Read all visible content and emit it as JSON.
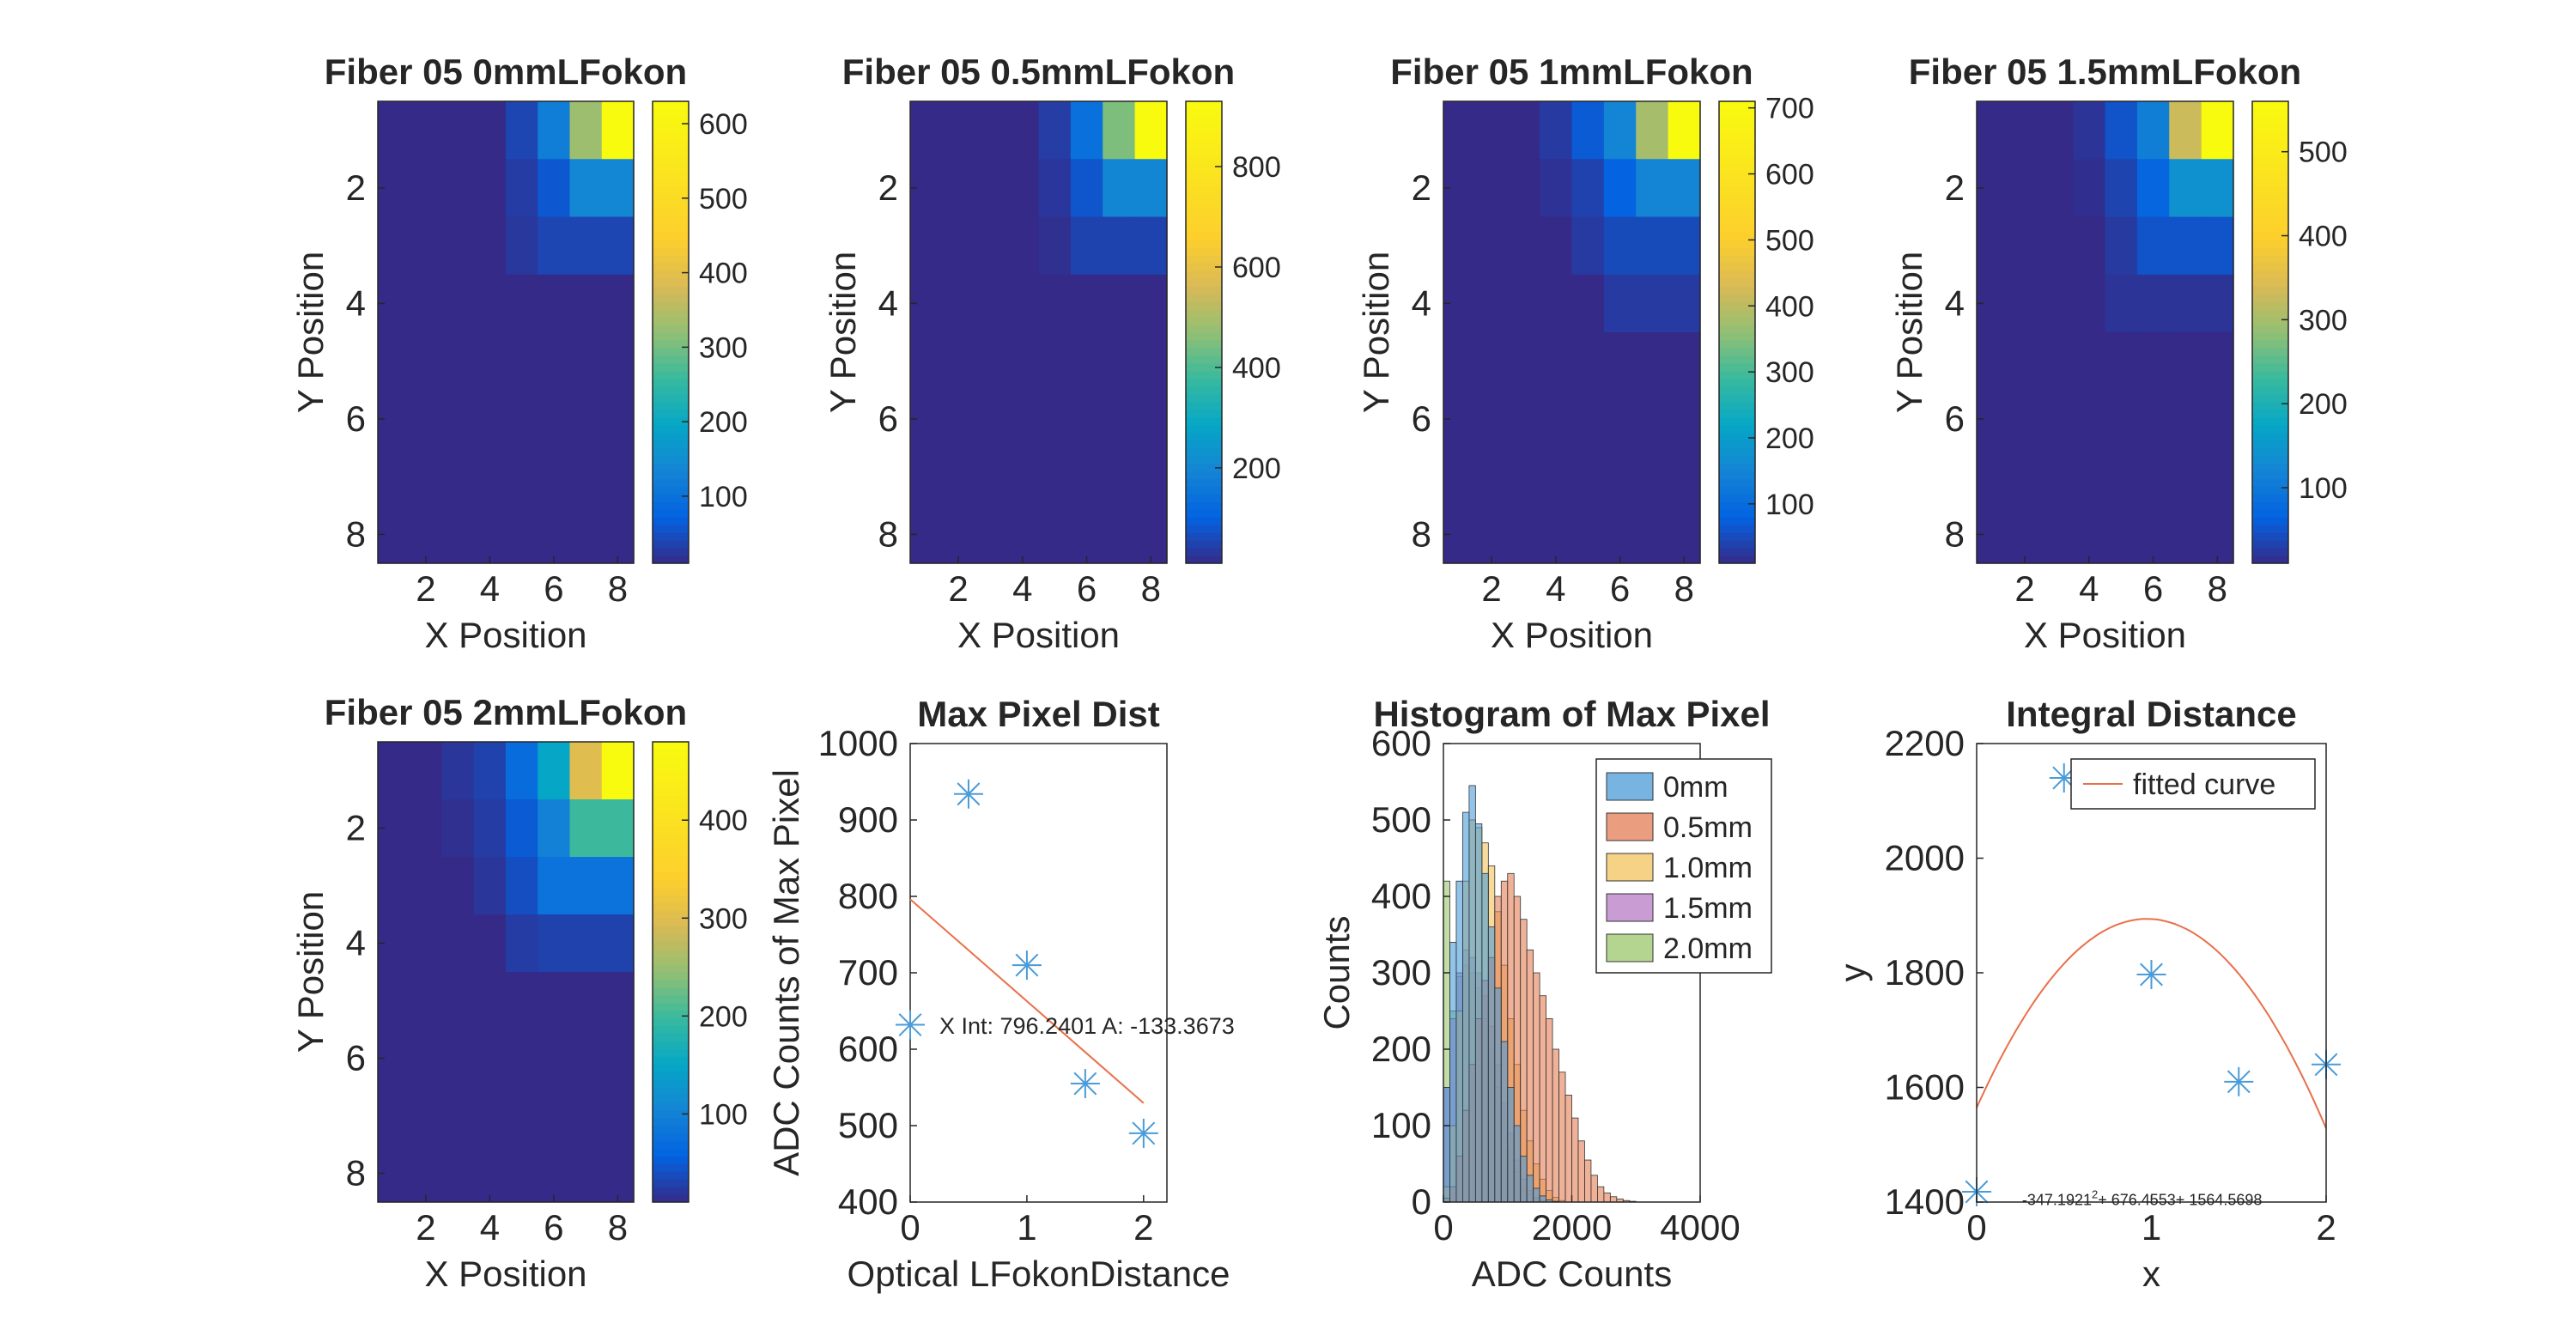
{
  "chart_data": [
    {
      "type": "heatmap",
      "title": "Fiber 05 0mmLFokon",
      "xlabel": "X Position",
      "ylabel": "Y Position",
      "xticks": [
        "2",
        "4",
        "6",
        "8"
      ],
      "yticks": [
        "2",
        "4",
        "6",
        "8"
      ],
      "clim": [
        10,
        630
      ],
      "colorbar_ticks": [
        100,
        200,
        300,
        400,
        500,
        600
      ],
      "z": [
        [
          10,
          10,
          10,
          10,
          40,
          120,
          330,
          630
        ],
        [
          10,
          10,
          10,
          10,
          30,
          60,
          140,
          140
        ],
        [
          10,
          10,
          10,
          10,
          25,
          40,
          40,
          40
        ],
        [
          10,
          10,
          10,
          10,
          10,
          10,
          10,
          10
        ],
        [
          10,
          10,
          10,
          10,
          10,
          10,
          10,
          10
        ],
        [
          10,
          10,
          10,
          10,
          10,
          10,
          10,
          10
        ],
        [
          10,
          10,
          10,
          10,
          10,
          10,
          10,
          10
        ],
        [
          10,
          10,
          10,
          10,
          10,
          10,
          10,
          10
        ]
      ]
    },
    {
      "type": "heatmap",
      "title": "Fiber 05 0.5mmLFokon",
      "xlabel": "X Position",
      "ylabel": "Y Position",
      "xticks": [
        "2",
        "4",
        "6",
        "8"
      ],
      "yticks": [
        "2",
        "4",
        "6",
        "8"
      ],
      "clim": [
        10,
        930
      ],
      "colorbar_ticks": [
        200,
        400,
        600,
        800
      ],
      "z": [
        [
          10,
          10,
          10,
          10,
          40,
          140,
          450,
          930
        ],
        [
          10,
          10,
          10,
          10,
          30,
          80,
          200,
          200
        ],
        [
          10,
          10,
          10,
          10,
          20,
          50,
          50,
          50
        ],
        [
          10,
          10,
          10,
          10,
          10,
          10,
          10,
          10
        ],
        [
          10,
          10,
          10,
          10,
          10,
          10,
          10,
          10
        ],
        [
          10,
          10,
          10,
          10,
          10,
          10,
          10,
          10
        ],
        [
          10,
          10,
          10,
          10,
          10,
          10,
          10,
          10
        ],
        [
          10,
          10,
          10,
          10,
          10,
          10,
          10,
          10
        ]
      ]
    },
    {
      "type": "heatmap",
      "title": "Fiber 05 1mmLFokon",
      "xlabel": "X Position",
      "ylabel": "Y Position",
      "xticks": [
        "2",
        "4",
        "6",
        "8"
      ],
      "yticks": [
        "2",
        "4",
        "6",
        "8"
      ],
      "clim": [
        10,
        710
      ],
      "colorbar_ticks": [
        100,
        200,
        300,
        400,
        500,
        600,
        700
      ],
      "z": [
        [
          10,
          10,
          10,
          30,
          70,
          150,
          380,
          710
        ],
        [
          10,
          10,
          10,
          20,
          40,
          80,
          150,
          150
        ],
        [
          10,
          10,
          10,
          10,
          30,
          50,
          50,
          50
        ],
        [
          10,
          10,
          10,
          10,
          10,
          30,
          30,
          30
        ],
        [
          10,
          10,
          10,
          10,
          10,
          10,
          10,
          10
        ],
        [
          10,
          10,
          10,
          10,
          10,
          10,
          10,
          10
        ],
        [
          10,
          10,
          10,
          10,
          10,
          10,
          10,
          10
        ],
        [
          10,
          10,
          10,
          10,
          10,
          10,
          10,
          10
        ]
      ]
    },
    {
      "type": "heatmap",
      "title": "Fiber 05 1.5mmLFokon",
      "xlabel": "X Position",
      "ylabel": "Y Position",
      "xticks": [
        "2",
        "4",
        "6",
        "8"
      ],
      "yticks": [
        "2",
        "4",
        "6",
        "8"
      ],
      "clim": [
        10,
        560
      ],
      "colorbar_ticks": [
        100,
        200,
        300,
        400,
        500
      ],
      "z": [
        [
          10,
          10,
          10,
          20,
          50,
          110,
          330,
          560
        ],
        [
          10,
          10,
          10,
          15,
          35,
          70,
          140,
          140
        ],
        [
          10,
          10,
          10,
          10,
          25,
          50,
          50,
          50
        ],
        [
          10,
          10,
          10,
          10,
          20,
          20,
          20,
          20
        ],
        [
          10,
          10,
          10,
          10,
          10,
          10,
          10,
          10
        ],
        [
          10,
          10,
          10,
          10,
          10,
          10,
          10,
          10
        ],
        [
          10,
          10,
          10,
          10,
          10,
          10,
          10,
          10
        ],
        [
          10,
          10,
          10,
          10,
          10,
          10,
          10,
          10
        ]
      ]
    },
    {
      "type": "heatmap",
      "title": "Fiber 05 2mmLFokon",
      "xlabel": "X Position",
      "ylabel": "Y Position",
      "xticks": [
        "2",
        "4",
        "6",
        "8"
      ],
      "yticks": [
        "2",
        "4",
        "6",
        "8"
      ],
      "clim": [
        10,
        480
      ],
      "colorbar_ticks": [
        100,
        200,
        300,
        400
      ],
      "z": [
        [
          10,
          10,
          20,
          30,
          70,
          150,
          300,
          480
        ],
        [
          10,
          10,
          15,
          25,
          50,
          100,
          200,
          200
        ],
        [
          10,
          10,
          10,
          20,
          40,
          80,
          80,
          80
        ],
        [
          10,
          10,
          10,
          10,
          25,
          30,
          30,
          30
        ],
        [
          10,
          10,
          10,
          10,
          10,
          10,
          10,
          10
        ],
        [
          10,
          10,
          10,
          10,
          10,
          10,
          10,
          10
        ],
        [
          10,
          10,
          10,
          10,
          10,
          10,
          10,
          10
        ],
        [
          10,
          10,
          10,
          10,
          10,
          10,
          10,
          10
        ]
      ]
    },
    {
      "type": "scatter",
      "title": "Max Pixel Dist",
      "xlabel": "Optical LFokonDistance",
      "ylabel": "ADC Counts of Max Pixel",
      "xlim": [
        0,
        2.2
      ],
      "ylim": [
        400,
        1000
      ],
      "xticks": [
        0,
        1,
        2
      ],
      "yticks": [
        400,
        500,
        600,
        700,
        800,
        900,
        1000
      ],
      "x": [
        0,
        0.5,
        1,
        1.5,
        2
      ],
      "y": [
        632,
        934,
        710,
        555,
        490
      ],
      "fit_line": {
        "x": [
          0,
          2
        ],
        "y": [
          796.2401,
          529.5055
        ]
      },
      "annotation": "X Int: 796.2401 A: -133.3673"
    },
    {
      "type": "bar",
      "title": "Histogram of Max Pixel",
      "xlabel": "ADC Counts",
      "ylabel": "Counts",
      "xlim": [
        0,
        4000
      ],
      "ylim": [
        0,
        600
      ],
      "xticks": [
        0,
        2000,
        4000
      ],
      "yticks": [
        0,
        100,
        200,
        300,
        400,
        500,
        600
      ],
      "bin_width": 100,
      "series": [
        {
          "name": "2.0mm",
          "color": "#9bc76b",
          "values": [
            420,
            250,
            295,
            310,
            300,
            280,
            240,
            200,
            150,
            110,
            70,
            40,
            20,
            10,
            5,
            2
          ]
        },
        {
          "name": "1.5mm",
          "color": "#b77bc6",
          "values": [
            150,
            240,
            300,
            330,
            320,
            300,
            270,
            230,
            180,
            130,
            90,
            55,
            30,
            15,
            6,
            2
          ]
        },
        {
          "name": "1.0mm",
          "color": "#f1c35c",
          "values": [
            20,
            100,
            250,
            420,
            500,
            490,
            470,
            440,
            380,
            310,
            240,
            180,
            120,
            80,
            50,
            30,
            15,
            6,
            2
          ]
        },
        {
          "name": "0.5mm",
          "color": "#e47d54",
          "values": [
            5,
            20,
            60,
            120,
            180,
            240,
            290,
            320,
            400,
            420,
            430,
            400,
            370,
            330,
            300,
            270,
            240,
            200,
            170,
            140,
            110,
            80,
            55,
            35,
            20,
            12,
            7,
            4,
            2,
            1
          ]
        },
        {
          "name": "0mm",
          "color": "#4a9bd8",
          "values": [
            150,
            340,
            420,
            510,
            545,
            495,
            430,
            360,
            280,
            210,
            150,
            100,
            60,
            35,
            18,
            8,
            3,
            1
          ]
        }
      ],
      "legend": [
        "0mm",
        "0.5mm",
        "1.0mm",
        "1.5mm",
        "2.0mm"
      ],
      "legend_position": "top-right"
    },
    {
      "type": "scatter",
      "title": "Integral Distance",
      "xlabel": "x",
      "ylabel": "y",
      "xlim": [
        0,
        2
      ],
      "ylim": [
        1400,
        2200
      ],
      "xticks": [
        0,
        1,
        2
      ],
      "yticks": [
        1400,
        1600,
        1800,
        2000,
        2200
      ],
      "x": [
        0,
        0.5,
        1,
        1.5,
        2
      ],
      "y": [
        1418,
        2140,
        1797,
        1610,
        1640
      ],
      "fit_curve": {
        "a": -347.1921,
        "b": 676.4553,
        "c": 1564.5698
      },
      "legend": [
        "fitted curve"
      ],
      "legend_position": "top-right",
      "annotation": "-347.1921",
      "annotation_sup": "2",
      "annotation_rest": "+ 676.4553+ 1564.5698"
    }
  ],
  "colors": {
    "marker": "#4a9bd8",
    "fit_line": "#e8704a",
    "axis": "#262626"
  }
}
